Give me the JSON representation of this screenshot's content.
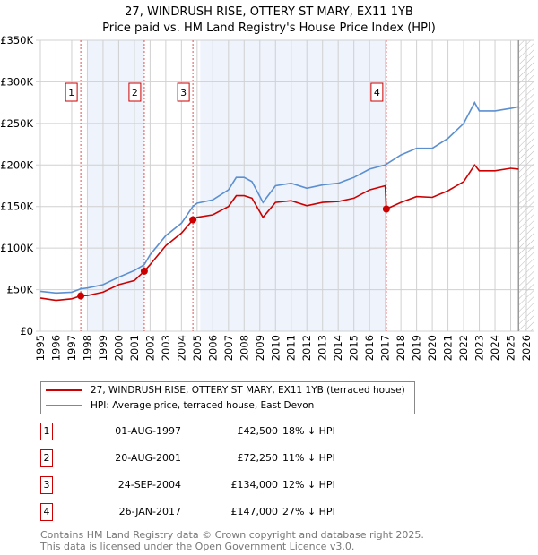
{
  "title": {
    "line1": "27, WINDRUSH RISE, OTTERY ST MARY, EX11 1YB",
    "line2": "Price paid vs. HM Land Registry's House Price Index (HPI)"
  },
  "chart_data": {
    "type": "line",
    "title": "27, WINDRUSH RISE, OTTERY ST MARY, EX11 1YB — Price paid vs. HM Land Registry's House Price Index (HPI)",
    "xlim": [
      1995,
      2026
    ],
    "ylim": [
      0,
      350000
    ],
    "x_ticks": [
      "1995",
      "1996",
      "1997",
      "1998",
      "1999",
      "2000",
      "2001",
      "2002",
      "2003",
      "2004",
      "2005",
      "2006",
      "2007",
      "2008",
      "2009",
      "2010",
      "2011",
      "2012",
      "2013",
      "2014",
      "2015",
      "2016",
      "2017",
      "2018",
      "2019",
      "2020",
      "2021",
      "2022",
      "2023",
      "2024",
      "2025",
      "2026"
    ],
    "y_ticks": [
      {
        "v": 0,
        "label": "£0"
      },
      {
        "v": 50000,
        "label": "£50K"
      },
      {
        "v": 100000,
        "label": "£100K"
      },
      {
        "v": 150000,
        "label": "£150K"
      },
      {
        "v": 200000,
        "label": "£200K"
      },
      {
        "v": 250000,
        "label": "£250K"
      },
      {
        "v": 300000,
        "label": "£300K"
      },
      {
        "v": 350000,
        "label": "£350K"
      }
    ],
    "grid": true,
    "colors": {
      "property": "#cc0000",
      "hpi": "#5b8fd0",
      "shade": "#eef3fc",
      "marker_line": "#e05050"
    },
    "series": [
      {
        "name": "27, WINDRUSH RISE, OTTERY ST MARY, EX11 1YB (terraced house)",
        "key": "property",
        "x": [
          1995,
          1996,
          1997,
          1997.58,
          1998,
          1999,
          2000,
          2001,
          2001.63,
          2002,
          2003,
          2004,
          2004.73,
          2005,
          2006,
          2007,
          2007.5,
          2008,
          2008.5,
          2009.2,
          2010,
          2011,
          2012,
          2013,
          2014,
          2015,
          2016,
          2017.0,
          2017.07,
          2018,
          2019,
          2020,
          2021,
          2022,
          2022.7,
          2023,
          2024,
          2025,
          2025.5
        ],
        "y": [
          40000,
          37000,
          39000,
          42500,
          43000,
          47000,
          56000,
          61000,
          72250,
          80000,
          103000,
          118000,
          134000,
          137000,
          140000,
          150000,
          163000,
          163000,
          160000,
          137000,
          155000,
          157000,
          151000,
          155000,
          156000,
          160000,
          170000,
          175000,
          147000,
          155000,
          162000,
          161000,
          169000,
          180000,
          200000,
          193000,
          193000,
          196000,
          195000
        ]
      },
      {
        "name": "HPI: Average price, terraced house, East Devon",
        "key": "hpi",
        "x": [
          1995,
          1996,
          1997,
          1997.58,
          1998,
          1999,
          2000,
          2001,
          2001.63,
          2002,
          2003,
          2004,
          2004.73,
          2005,
          2006,
          2007,
          2007.5,
          2008,
          2008.5,
          2009.2,
          2010,
          2011,
          2012,
          2013,
          2014,
          2015,
          2016,
          2017.0,
          2018,
          2019,
          2020,
          2021,
          2022,
          2022.7,
          2023,
          2024,
          2025,
          2025.5
        ],
        "y": [
          48000,
          46000,
          47000,
          51000,
          52000,
          56000,
          65000,
          73000,
          80000,
          92000,
          115000,
          130000,
          150000,
          154000,
          158000,
          170000,
          185000,
          185000,
          180000,
          155000,
          175000,
          178000,
          172000,
          176000,
          178000,
          185000,
          195000,
          200000,
          212000,
          220000,
          220000,
          232000,
          250000,
          275000,
          265000,
          265000,
          268000,
          270000
        ]
      }
    ],
    "sales": [
      {
        "n": "1",
        "x": 1997.58,
        "y": 42500,
        "date": "01-AUG-1997",
        "price": "£42,500",
        "pct": "18% ↓ HPI"
      },
      {
        "n": "2",
        "x": 2001.63,
        "y": 72250,
        "date": "20-AUG-2001",
        "price": "£72,250",
        "pct": "11% ↓ HPI"
      },
      {
        "n": "3",
        "x": 2004.73,
        "y": 134000,
        "date": "24-SEP-2004",
        "price": "£134,000",
        "pct": "12% ↓ HPI"
      },
      {
        "n": "4",
        "x": 2017.07,
        "y": 147000,
        "date": "26-JAN-2017",
        "price": "£147,000",
        "pct": "27% ↓ HPI"
      }
    ],
    "shaded_ranges": [
      [
        1998,
        2001.63
      ],
      [
        2005.2,
        2017.07
      ]
    ],
    "hatched_from": 2025.5
  },
  "legend": {
    "property": "27, WINDRUSH RISE, OTTERY ST MARY, EX11 1YB (terraced house)",
    "hpi": "HPI: Average price, terraced house, East Devon"
  },
  "footer": {
    "line1": "Contains HM Land Registry data © Crown copyright and database right 2025.",
    "line2": "This data is licensed under the Open Government Licence v3.0."
  }
}
